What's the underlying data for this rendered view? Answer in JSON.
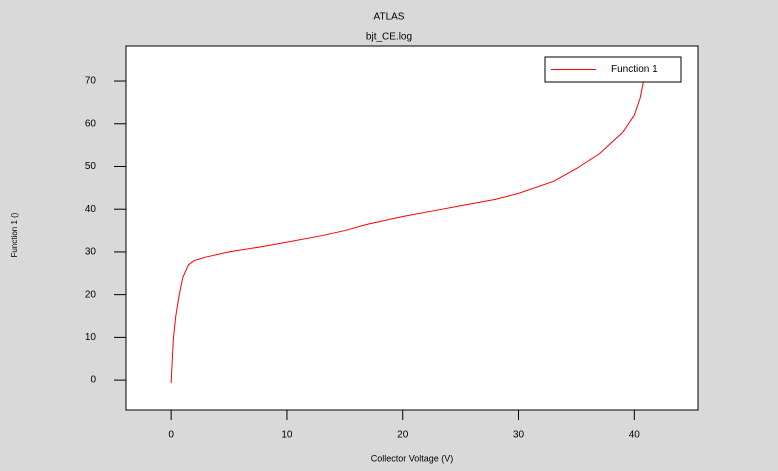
{
  "chart_data": {
    "type": "line",
    "title": "ATLAS",
    "subtitle": "bjt_CE.log",
    "x_label": "Collector Voltage (V)",
    "y_label": "Function 1 ()",
    "xlim": [
      -3.9,
      45.5
    ],
    "ylim": [
      -7,
      78.2
    ],
    "xticks": [
      0,
      10,
      20,
      30,
      40
    ],
    "yticks": [
      0,
      10,
      20,
      30,
      40,
      50,
      60,
      70
    ],
    "legend": "upper right",
    "series": [
      {
        "name": "Function 1",
        "color": "#ff0000",
        "x": [
          0,
          0.1,
          0.2,
          0.4,
          0.7,
          1.0,
          1.5,
          2,
          3,
          5,
          8,
          10,
          13,
          15,
          17,
          20,
          23,
          25,
          28,
          30,
          33,
          35,
          37,
          39,
          40,
          40.5,
          40.8,
          41
        ],
        "values": [
          -0.7,
          5,
          10,
          15,
          20,
          24,
          27,
          28,
          28.8,
          30,
          31.3,
          32.3,
          33.8,
          35,
          36.5,
          38.3,
          39.8,
          40.8,
          42.3,
          43.7,
          46.5,
          49.5,
          53,
          58,
          62,
          66,
          70,
          73
        ]
      }
    ]
  }
}
